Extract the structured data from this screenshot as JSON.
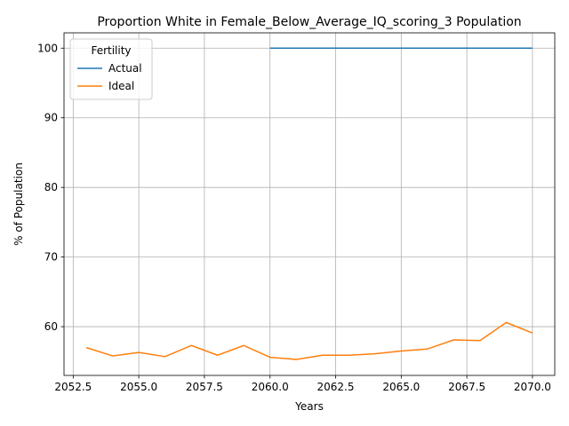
{
  "chart_data": {
    "type": "line",
    "title": "Proportion White in Female_Below_Average_IQ_scoring_3 Population",
    "xlabel": "Years",
    "ylabel": "% of Population",
    "xlim": [
      2052.15,
      2070.85
    ],
    "ylim": [
      53.0,
      102.2
    ],
    "xticks": [
      "2052.5",
      "2055.0",
      "2057.5",
      "2060.0",
      "2062.5",
      "2065.0",
      "2067.5",
      "2070.0"
    ],
    "xtick_values": [
      2052.5,
      2055.0,
      2057.5,
      2060.0,
      2062.5,
      2065.0,
      2067.5,
      2070.0
    ],
    "yticks": [
      "60",
      "70",
      "80",
      "90",
      "100"
    ],
    "ytick_values": [
      60,
      70,
      80,
      90,
      100
    ],
    "grid": true,
    "legend": {
      "title": "Fertility",
      "placement": "upper-left"
    },
    "series": [
      {
        "name": "Actual",
        "color": "#1f77b4",
        "x": [
          2060,
          2061,
          2062,
          2063,
          2064,
          2065,
          2066,
          2067,
          2068,
          2069,
          2070
        ],
        "values": [
          100,
          100,
          100,
          100,
          100,
          100,
          100,
          100,
          100,
          100,
          100
        ]
      },
      {
        "name": "Ideal",
        "color": "#ff7f0e",
        "x": [
          2053,
          2054,
          2055,
          2056,
          2057,
          2058,
          2059,
          2060,
          2061,
          2062,
          2063,
          2064,
          2065,
          2066,
          2067,
          2068,
          2069,
          2070
        ],
        "values": [
          57.0,
          55.8,
          56.3,
          55.7,
          57.3,
          55.9,
          57.3,
          55.6,
          55.3,
          55.9,
          55.9,
          56.1,
          56.5,
          56.8,
          58.1,
          58.0,
          60.6,
          59.1
        ]
      }
    ]
  }
}
